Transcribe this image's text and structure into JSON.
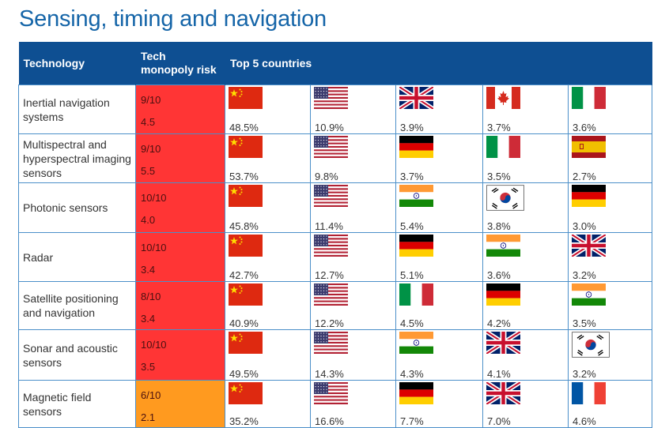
{
  "title": "Sensing, timing and navigation",
  "headers": {
    "technology": "Technology",
    "risk": "Tech monopoly risk",
    "countries": "Top 5 countries"
  },
  "colors": {
    "header_bg": "#0e4f92",
    "risk_high": "#ff3535",
    "risk_medium": "#ff9a1f",
    "title": "#1565a8"
  },
  "rows": [
    {
      "technology": "Inertial navigation systems",
      "risk": "9/10",
      "sub": "4.5",
      "level": "high",
      "countries": [
        {
          "flag": "china-flag",
          "pct": "48.5%"
        },
        {
          "flag": "usa-flag",
          "pct": "10.9%"
        },
        {
          "flag": "uk-flag",
          "pct": "3.9%"
        },
        {
          "flag": "canada-flag",
          "pct": "3.7%"
        },
        {
          "flag": "italy-flag",
          "pct": "3.6%"
        }
      ]
    },
    {
      "technology": "Multispectral and hyperspectral imaging sensors",
      "risk": "9/10",
      "sub": "5.5",
      "level": "high",
      "countries": [
        {
          "flag": "china-flag",
          "pct": "53.7%"
        },
        {
          "flag": "usa-flag",
          "pct": "9.8%"
        },
        {
          "flag": "germany-flag",
          "pct": "3.7%"
        },
        {
          "flag": "italy-flag",
          "pct": "3.5%"
        },
        {
          "flag": "spain-flag",
          "pct": "2.7%"
        }
      ]
    },
    {
      "technology": "Photonic sensors",
      "risk": "10/10",
      "sub": "4.0",
      "level": "high",
      "countries": [
        {
          "flag": "china-flag",
          "pct": "45.8%"
        },
        {
          "flag": "usa-flag",
          "pct": "11.4%"
        },
        {
          "flag": "india-flag",
          "pct": "5.4%"
        },
        {
          "flag": "south-korea-flag",
          "pct": "3.8%"
        },
        {
          "flag": "germany-flag",
          "pct": "3.0%"
        }
      ]
    },
    {
      "technology": "Radar",
      "risk": "10/10",
      "sub": "3.4",
      "level": "high",
      "countries": [
        {
          "flag": "china-flag",
          "pct": "42.7%"
        },
        {
          "flag": "usa-flag",
          "pct": "12.7%"
        },
        {
          "flag": "germany-flag",
          "pct": "5.1%"
        },
        {
          "flag": "india-flag",
          "pct": "3.6%"
        },
        {
          "flag": "uk-flag",
          "pct": "3.2%"
        }
      ]
    },
    {
      "technology": "Satellite positioning and navigation",
      "risk": "8/10",
      "sub": "3.4",
      "level": "high",
      "countries": [
        {
          "flag": "china-flag",
          "pct": "40.9%"
        },
        {
          "flag": "usa-flag",
          "pct": "12.2%"
        },
        {
          "flag": "italy-flag",
          "pct": "4.5%"
        },
        {
          "flag": "germany-flag",
          "pct": "4.2%"
        },
        {
          "flag": "india-flag",
          "pct": "3.5%"
        }
      ]
    },
    {
      "technology": "Sonar and acoustic sensors",
      "risk": "10/10",
      "sub": "3.5",
      "level": "high",
      "countries": [
        {
          "flag": "china-flag",
          "pct": "49.5%"
        },
        {
          "flag": "usa-flag",
          "pct": "14.3%"
        },
        {
          "flag": "india-flag",
          "pct": "4.3%"
        },
        {
          "flag": "uk-flag",
          "pct": "4.1%"
        },
        {
          "flag": "south-korea-flag",
          "pct": "3.2%"
        }
      ]
    },
    {
      "technology": "Magnetic field sensors",
      "risk": "6/10",
      "sub": "2.1",
      "level": "medium",
      "countries": [
        {
          "flag": "china-flag",
          "pct": "35.2%"
        },
        {
          "flag": "usa-flag",
          "pct": "16.6%"
        },
        {
          "flag": "germany-flag",
          "pct": "7.7%"
        },
        {
          "flag": "uk-flag",
          "pct": "7.0%"
        },
        {
          "flag": "france-flag",
          "pct": "4.6%"
        }
      ]
    }
  ]
}
